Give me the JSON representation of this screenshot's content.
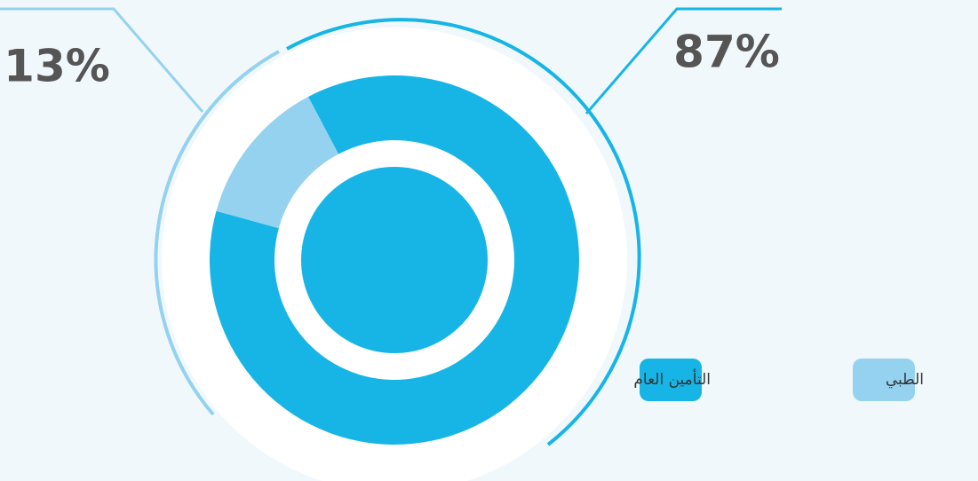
{
  "chart_data": {
    "type": "pie",
    "categories": [
      "التأمين العام",
      "الطبي"
    ],
    "values": [
      87,
      13
    ],
    "value_labels": [
      "87%",
      "13%"
    ],
    "colors": [
      "#16b5e6",
      "#94d2f0"
    ]
  }
}
